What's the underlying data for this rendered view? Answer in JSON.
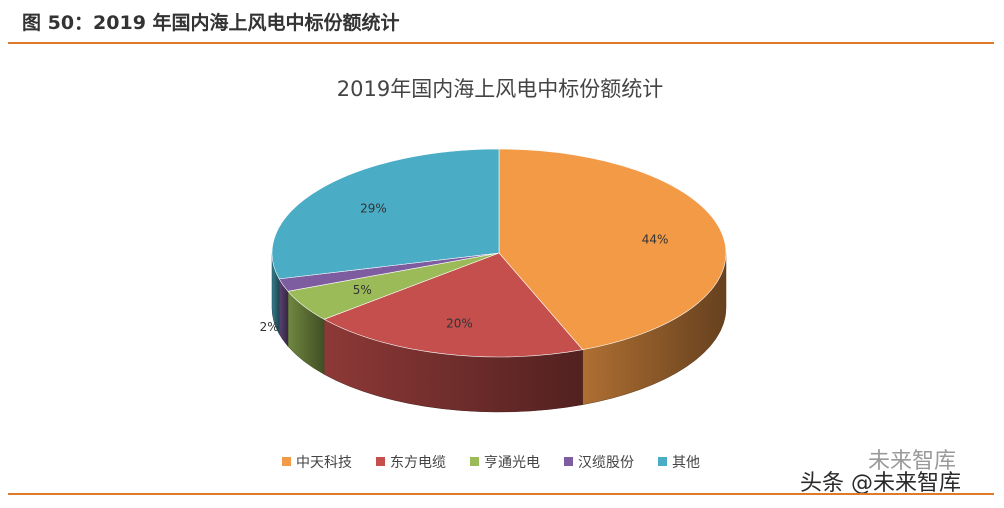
{
  "figure": {
    "caption": "图 50：2019 年国内海上风电中标份额统计"
  },
  "chart_data": {
    "type": "pie",
    "title": "2019年国内海上风电中标份额统计",
    "slices": [
      {
        "name": "中天科技",
        "value": 44,
        "label": "44%",
        "color": "#f39a47"
      },
      {
        "name": "东方电缆",
        "value": 20,
        "label": "20%",
        "color": "#c44f4c"
      },
      {
        "name": "亨通光电",
        "value": 5,
        "label": "5%",
        "color": "#9bbb59"
      },
      {
        "name": "汉缆股份",
        "value": 2,
        "label": "2%",
        "color": "#7d5ca0"
      },
      {
        "name": "其他",
        "value": 29,
        "label": "29%",
        "color": "#4bacc6"
      }
    ],
    "legend_position": "bottom",
    "style": "3d"
  },
  "watermark": {
    "text": "头条 @未来智库",
    "faint_text": "未来智库"
  },
  "colors": {
    "accent_rule": "#e07a2b"
  }
}
